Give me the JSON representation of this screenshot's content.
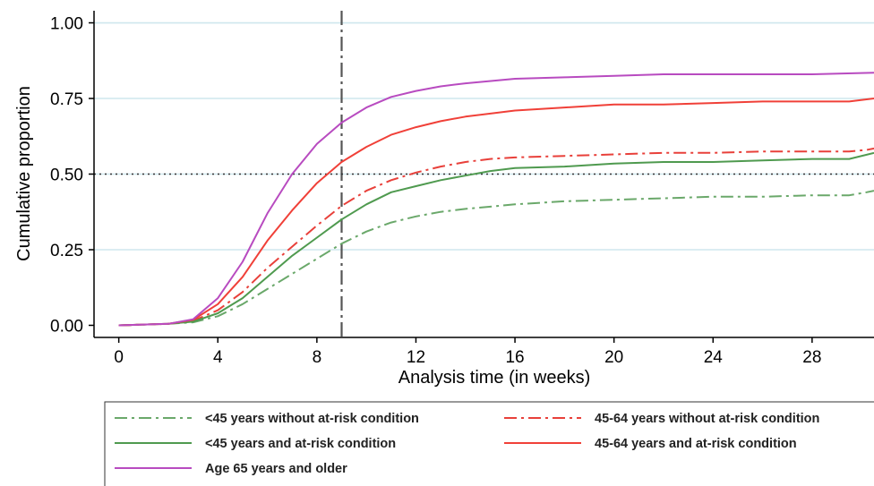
{
  "chart_data": {
    "type": "line",
    "xlabel": "Analysis time (in weeks)",
    "ylabel": "Cumulative proportion",
    "xlim": [
      -1,
      30.5
    ],
    "ylim": [
      -0.04,
      1.04
    ],
    "xticks": [
      0,
      4,
      8,
      12,
      16,
      20,
      24,
      28
    ],
    "yticks": [
      0,
      0.25,
      0.5,
      0.75,
      1.0
    ],
    "ytick_labels": [
      "0.00",
      "0.25",
      "0.50",
      "0.75",
      "1.00"
    ],
    "grid": "horizontal",
    "reference_lines": [
      {
        "orientation": "vertical",
        "value": 9,
        "style": "dash-dot",
        "color": "#555555"
      },
      {
        "orientation": "horizontal",
        "value": 0.5,
        "style": "dotted",
        "color": "#333333"
      }
    ],
    "legend_position": "bottom",
    "series": [
      {
        "name": "<45 years without at-risk condition",
        "color": "#6aa86a",
        "style": "dash-dot",
        "x": [
          0,
          2,
          3,
          4,
          5,
          6,
          7,
          8,
          9,
          10,
          11,
          12,
          13,
          14,
          16,
          18,
          20,
          22,
          24,
          26,
          28,
          29.5,
          30.2,
          30.5
        ],
        "y": [
          0,
          0.005,
          0.01,
          0.03,
          0.07,
          0.12,
          0.17,
          0.22,
          0.27,
          0.31,
          0.34,
          0.36,
          0.375,
          0.385,
          0.4,
          0.41,
          0.415,
          0.42,
          0.425,
          0.425,
          0.43,
          0.43,
          0.44,
          0.445
        ]
      },
      {
        "name": "45-64 years without at-risk condition",
        "color": "#e8403a",
        "style": "dash-dot",
        "x": [
          0,
          2,
          3,
          4,
          5,
          6,
          7,
          8,
          9,
          10,
          11,
          12,
          13,
          14,
          15,
          16,
          18,
          20,
          22,
          24,
          26,
          28,
          29.5,
          30.2,
          30.5
        ],
        "y": [
          0,
          0.005,
          0.015,
          0.05,
          0.11,
          0.19,
          0.26,
          0.33,
          0.395,
          0.445,
          0.48,
          0.505,
          0.525,
          0.54,
          0.55,
          0.555,
          0.56,
          0.565,
          0.57,
          0.57,
          0.575,
          0.575,
          0.575,
          0.58,
          0.585
        ]
      },
      {
        "name": "<45 years  and at-risk condition",
        "color": "#4f9a4f",
        "style": "solid",
        "x": [
          0,
          2,
          3,
          4,
          5,
          6,
          7,
          8,
          9,
          10,
          11,
          12,
          13,
          14,
          15,
          16,
          18,
          20,
          22,
          24,
          26,
          28,
          29.5,
          30.5
        ],
        "y": [
          0,
          0.005,
          0.012,
          0.04,
          0.09,
          0.16,
          0.23,
          0.29,
          0.35,
          0.4,
          0.44,
          0.46,
          0.48,
          0.495,
          0.51,
          0.52,
          0.525,
          0.535,
          0.54,
          0.54,
          0.545,
          0.55,
          0.55,
          0.57
        ]
      },
      {
        "name": "45-64 years and at-risk condition",
        "color": "#f04038",
        "style": "solid",
        "x": [
          0,
          2,
          3,
          4,
          5,
          6,
          7,
          8,
          9,
          10,
          11,
          12,
          13,
          14,
          16,
          18,
          20,
          22,
          24,
          26,
          28,
          29.5,
          30.5
        ],
        "y": [
          0,
          0.005,
          0.018,
          0.07,
          0.16,
          0.28,
          0.38,
          0.47,
          0.54,
          0.59,
          0.63,
          0.655,
          0.675,
          0.69,
          0.71,
          0.72,
          0.73,
          0.73,
          0.735,
          0.74,
          0.74,
          0.74,
          0.75
        ]
      },
      {
        "name": "Age 65 years and older",
        "color": "#b84bc0",
        "style": "solid",
        "x": [
          0,
          2,
          3,
          4,
          5,
          6,
          7,
          8,
          9,
          10,
          11,
          12,
          13,
          14,
          16,
          18,
          20,
          22,
          24,
          26,
          28,
          30.5
        ],
        "y": [
          0,
          0.005,
          0.02,
          0.09,
          0.21,
          0.37,
          0.5,
          0.6,
          0.67,
          0.72,
          0.755,
          0.775,
          0.79,
          0.8,
          0.815,
          0.82,
          0.825,
          0.83,
          0.83,
          0.83,
          0.83,
          0.835
        ]
      }
    ]
  }
}
